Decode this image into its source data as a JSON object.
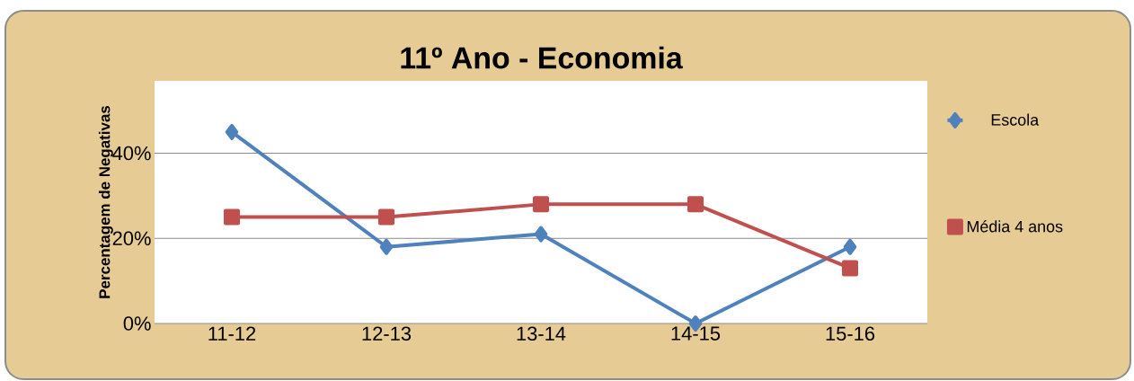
{
  "chart_data": {
    "type": "line",
    "title": "11º Ano - Economia",
    "ylabel": "Percentagem de Negativas",
    "categories": [
      "11-12",
      "12-13",
      "13-14",
      "14-15",
      "15-16"
    ],
    "series": [
      {
        "name": "Escola",
        "color": "#4f81bd",
        "marker": "diamond",
        "values": [
          45,
          18,
          21,
          0,
          18
        ]
      },
      {
        "name": "Média 4 anos",
        "color": "#c0504d",
        "marker": "square",
        "values": [
          25,
          25,
          28,
          28,
          13
        ]
      }
    ],
    "ylim": [
      0,
      57
    ],
    "yticks": [
      {
        "value": 0,
        "label": "0%"
      },
      {
        "value": 20,
        "label": "20%"
      },
      {
        "value": 40,
        "label": "40%"
      }
    ],
    "grid": "y",
    "legend": "right"
  }
}
